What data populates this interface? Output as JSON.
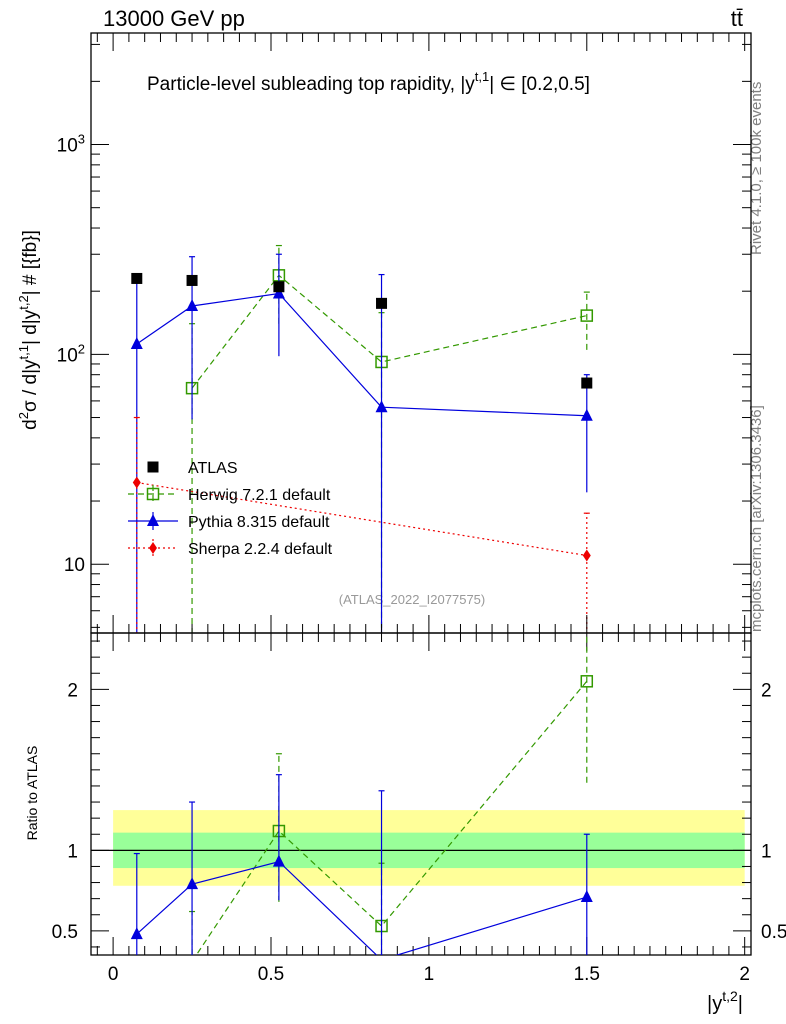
{
  "header": {
    "energy": "13000 GeV pp",
    "process": "tt̄"
  },
  "chart_data": [
    {
      "type": "scatter",
      "title": "Particle-level subleading top rapidity, |y",
      "title_sup": "t,1",
      "title_tail": "| ∈ [0.2,0.5]",
      "ylabel": "d²σ / d|y^{t,1}| d|y^{t,2}| # [{fb}]",
      "yscale": "log",
      "ylim": [
        4.7,
        3400
      ],
      "y_ticks": [
        10,
        100,
        1000
      ],
      "y_tick_labels": [
        "10",
        "10²",
        "10³"
      ],
      "watermark": "(ATLAS_2022_I2077575)",
      "series": [
        {
          "name": "ATLAS",
          "color": "#000000",
          "marker": "square",
          "x": [
            0.075,
            0.25,
            0.525,
            0.85,
            1.5
          ],
          "y": [
            230,
            225,
            210,
            175,
            73
          ]
        },
        {
          "name": "Herwig 7.2.1 default",
          "color": "#339900",
          "marker": "open-square",
          "line": "dashed",
          "x": [
            0.25,
            0.525,
            0.85,
            1.5
          ],
          "y": [
            69,
            238,
            92,
            153
          ],
          "err_lo": [
            1.0,
            140,
            4.0,
            105
          ],
          "err_hi": [
            140,
            330,
            158,
            198
          ]
        },
        {
          "name": "Pythia 8.315 default",
          "color": "#0000dd",
          "marker": "triangle",
          "line": "solid",
          "x": [
            0.075,
            0.25,
            0.525,
            0.85,
            1.5
          ],
          "y": [
            112,
            170,
            195,
            56,
            51
          ],
          "err_lo": [
            1.0,
            49,
            98,
            1.0,
            22
          ],
          "err_hi": [
            228,
            292,
            300,
            240,
            80
          ]
        },
        {
          "name": "Sherpa 2.2.4 default",
          "color": "#ee0000",
          "marker": "diamond",
          "line": "dotted",
          "x": [
            0.075,
            1.5
          ],
          "y": [
            24.5,
            11
          ],
          "err_lo": [
            1.0,
            1.0
          ],
          "err_hi": [
            50,
            17.5
          ]
        }
      ]
    },
    {
      "type": "scatter",
      "ylabel": "Ratio to ATLAS",
      "xlabel": "|y",
      "xlabel_sup": "t,2",
      "xlabel_tail": "|",
      "ylim": [
        0.35,
        2.35
      ],
      "xlim": [
        -0.07,
        2.02
      ],
      "x_ticks": [
        0,
        0.5,
        1,
        1.5,
        2
      ],
      "x_tick_labels": [
        "0",
        "0.5",
        "1",
        "1.5",
        "2"
      ],
      "y_ticks": [
        0.5,
        1,
        2
      ],
      "y_tick_labels": [
        "0.5",
        "1",
        "2"
      ],
      "band_inner": [
        0.89,
        1.11
      ],
      "band_outer": [
        0.78,
        1.25
      ],
      "series": [
        {
          "name": "Herwig 7.2.1 default",
          "x": [
            0.25,
            0.525,
            0.85,
            1.5
          ],
          "y": [
            0.31,
            1.12,
            0.53,
            2.05
          ],
          "err_lo": [
            0.1,
            0.68,
            0.1,
            1.42
          ],
          "err_hi": [
            0.62,
            1.6,
            0.92,
            2.4
          ]
        },
        {
          "name": "Pythia 8.315 default",
          "x": [
            0.075,
            0.25,
            0.525,
            0.85,
            1.5
          ],
          "y": [
            0.48,
            0.79,
            0.93,
            0.32,
            0.71
          ],
          "err_lo": [
            0.1,
            0.1,
            0.69,
            0.1,
            0.3
          ],
          "err_hi": [
            0.98,
            1.3,
            1.47,
            1.37,
            1.1
          ]
        }
      ]
    }
  ],
  "side_text": {
    "rivet": "Rivet 4.1.0, ≥ 100k events",
    "mcplots": "mcplots.cern.ch [arXiv:1306.3436]"
  }
}
